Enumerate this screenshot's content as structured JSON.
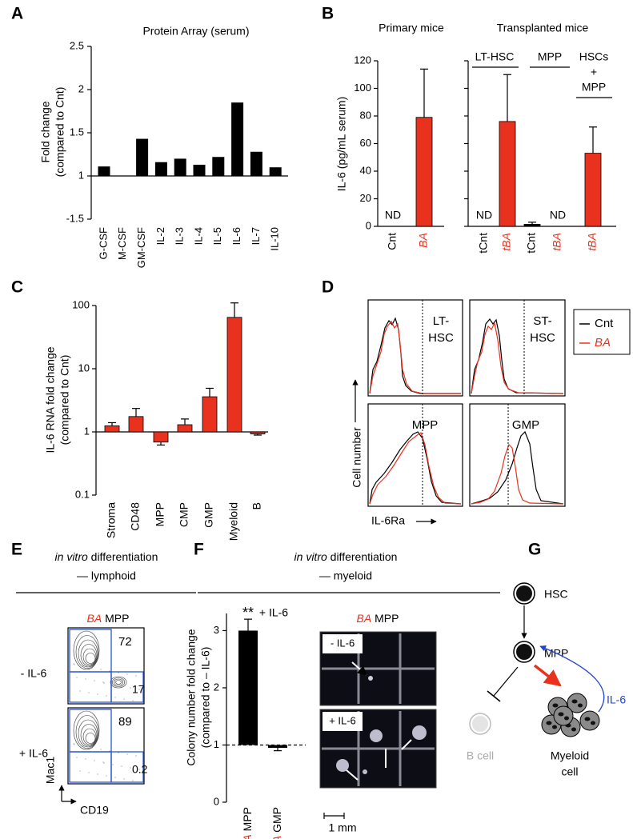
{
  "panel_labels": [
    "A",
    "B",
    "C",
    "D",
    "E",
    "F",
    "G"
  ],
  "chart_data": [
    {
      "type": "bar",
      "title": "Protein Array (serum)",
      "y_label": [
        "Fold change",
        "(compared to Cnt)"
      ],
      "categories": [
        "G-CSF",
        "M-CSF",
        "GM-CSF",
        "IL-2",
        "IL-3",
        "IL-4",
        "IL-5",
        "IL-6",
        "IL-7",
        "IL-10"
      ],
      "values": [
        1.11,
        1,
        1.43,
        1.16,
        1.2,
        1.13,
        1.22,
        1.85,
        1.28,
        1.1
      ],
      "color": "#000000",
      "baseline": 1,
      "scale": "signed-fold",
      "ylim": [
        -1.5,
        2.5
      ],
      "yticks": [
        -1.5,
        1,
        1.5,
        2,
        2.5
      ]
    },
    {
      "type": "bar",
      "y_label": "IL-6 (pg/mL serum)",
      "subplots": [
        "Primary mice",
        "Transplanted mice"
      ],
      "groups": [
        [
          "LT-HSC"
        ],
        [
          "MPP"
        ],
        [
          "HSCs",
          "+",
          "MPP"
        ]
      ],
      "categories": [
        "Cnt",
        "BA",
        "tCnt",
        "tBA",
        "tCnt",
        "tBA",
        "tBA"
      ],
      "category_colors": [
        "#000000",
        "#e8321e",
        "#000000",
        "#e8321e",
        "#000000",
        "#e8321e",
        "#e8321e"
      ],
      "values": [
        null,
        79,
        null,
        76,
        1.5,
        null,
        53
      ],
      "errors": [
        null,
        35,
        null,
        34,
        1.5,
        null,
        19
      ],
      "value_labels": [
        "ND",
        null,
        "ND",
        null,
        null,
        "ND",
        null
      ],
      "color": "#e8321e",
      "ylim": [
        0,
        120
      ],
      "yticks": [
        0,
        20,
        40,
        60,
        80,
        100,
        120
      ]
    },
    {
      "type": "bar",
      "y_label": [
        "IL-6 RNA fold change",
        "(compared to Cnt)"
      ],
      "categories": [
        "Stroma",
        "CD48",
        "MPP",
        "CMP",
        "GMP",
        "Myeloid",
        "B"
      ],
      "values": [
        1.25,
        1.75,
        0.69,
        1.3,
        3.6,
        65,
        0.93
      ],
      "errors": [
        0.15,
        0.6,
        0.07,
        0.3,
        1.3,
        45,
        0.04
      ],
      "color": "#e8321e",
      "log_scale": true,
      "baseline": 1,
      "ylim": [
        0.1,
        100
      ],
      "yticks": [
        0.1,
        1,
        10,
        100
      ]
    },
    {
      "type": "bar",
      "title": "+ IL-6",
      "annotation": "**",
      "y_label": [
        "Colony number fold change",
        "(compared to – IL-6)"
      ],
      "categories": [
        "BA MPP",
        "BA GMP"
      ],
      "accent_color": "#e8321e",
      "values": [
        3,
        0.95
      ],
      "errors": [
        0.2,
        0.05
      ],
      "color": "#000000",
      "baseline": 1,
      "ylim": [
        0,
        3.3
      ],
      "yticks": [
        0,
        1,
        2,
        3
      ]
    }
  ],
  "panel_d": {
    "plots": [
      [
        "LT-",
        "HSC"
      ],
      [
        "ST-",
        "HSC"
      ],
      [
        "MPP"
      ],
      [
        "GMP"
      ]
    ],
    "legend": [
      "Cnt",
      "BA"
    ],
    "colors": [
      "#000000",
      "#e8321e"
    ],
    "y_label": "Cell number",
    "x_label": "IL-6Ra"
  },
  "panel_e": {
    "title": [
      "in vitro",
      "differentiation"
    ],
    "subtitle": "— lymphoid",
    "sample": "BA MPP",
    "rows": [
      "- IL-6",
      "+ IL-6"
    ],
    "gate_values": [
      [
        72,
        17
      ],
      [
        89,
        0.2
      ]
    ],
    "y_label": "Mac1",
    "x_label": "CD19"
  },
  "panel_f": {
    "title": [
      "in vitro",
      "differentiation"
    ],
    "subtitle": "— myeloid",
    "sample": "BA MPP",
    "image_labels": [
      "- IL-6",
      "+ IL-6"
    ],
    "scale_bar": "1 mm"
  },
  "panel_g": {
    "nodes": [
      "HSC",
      "MPP",
      "B cell",
      [
        "Myeloid",
        "cell"
      ]
    ],
    "signal": "IL-6"
  }
}
